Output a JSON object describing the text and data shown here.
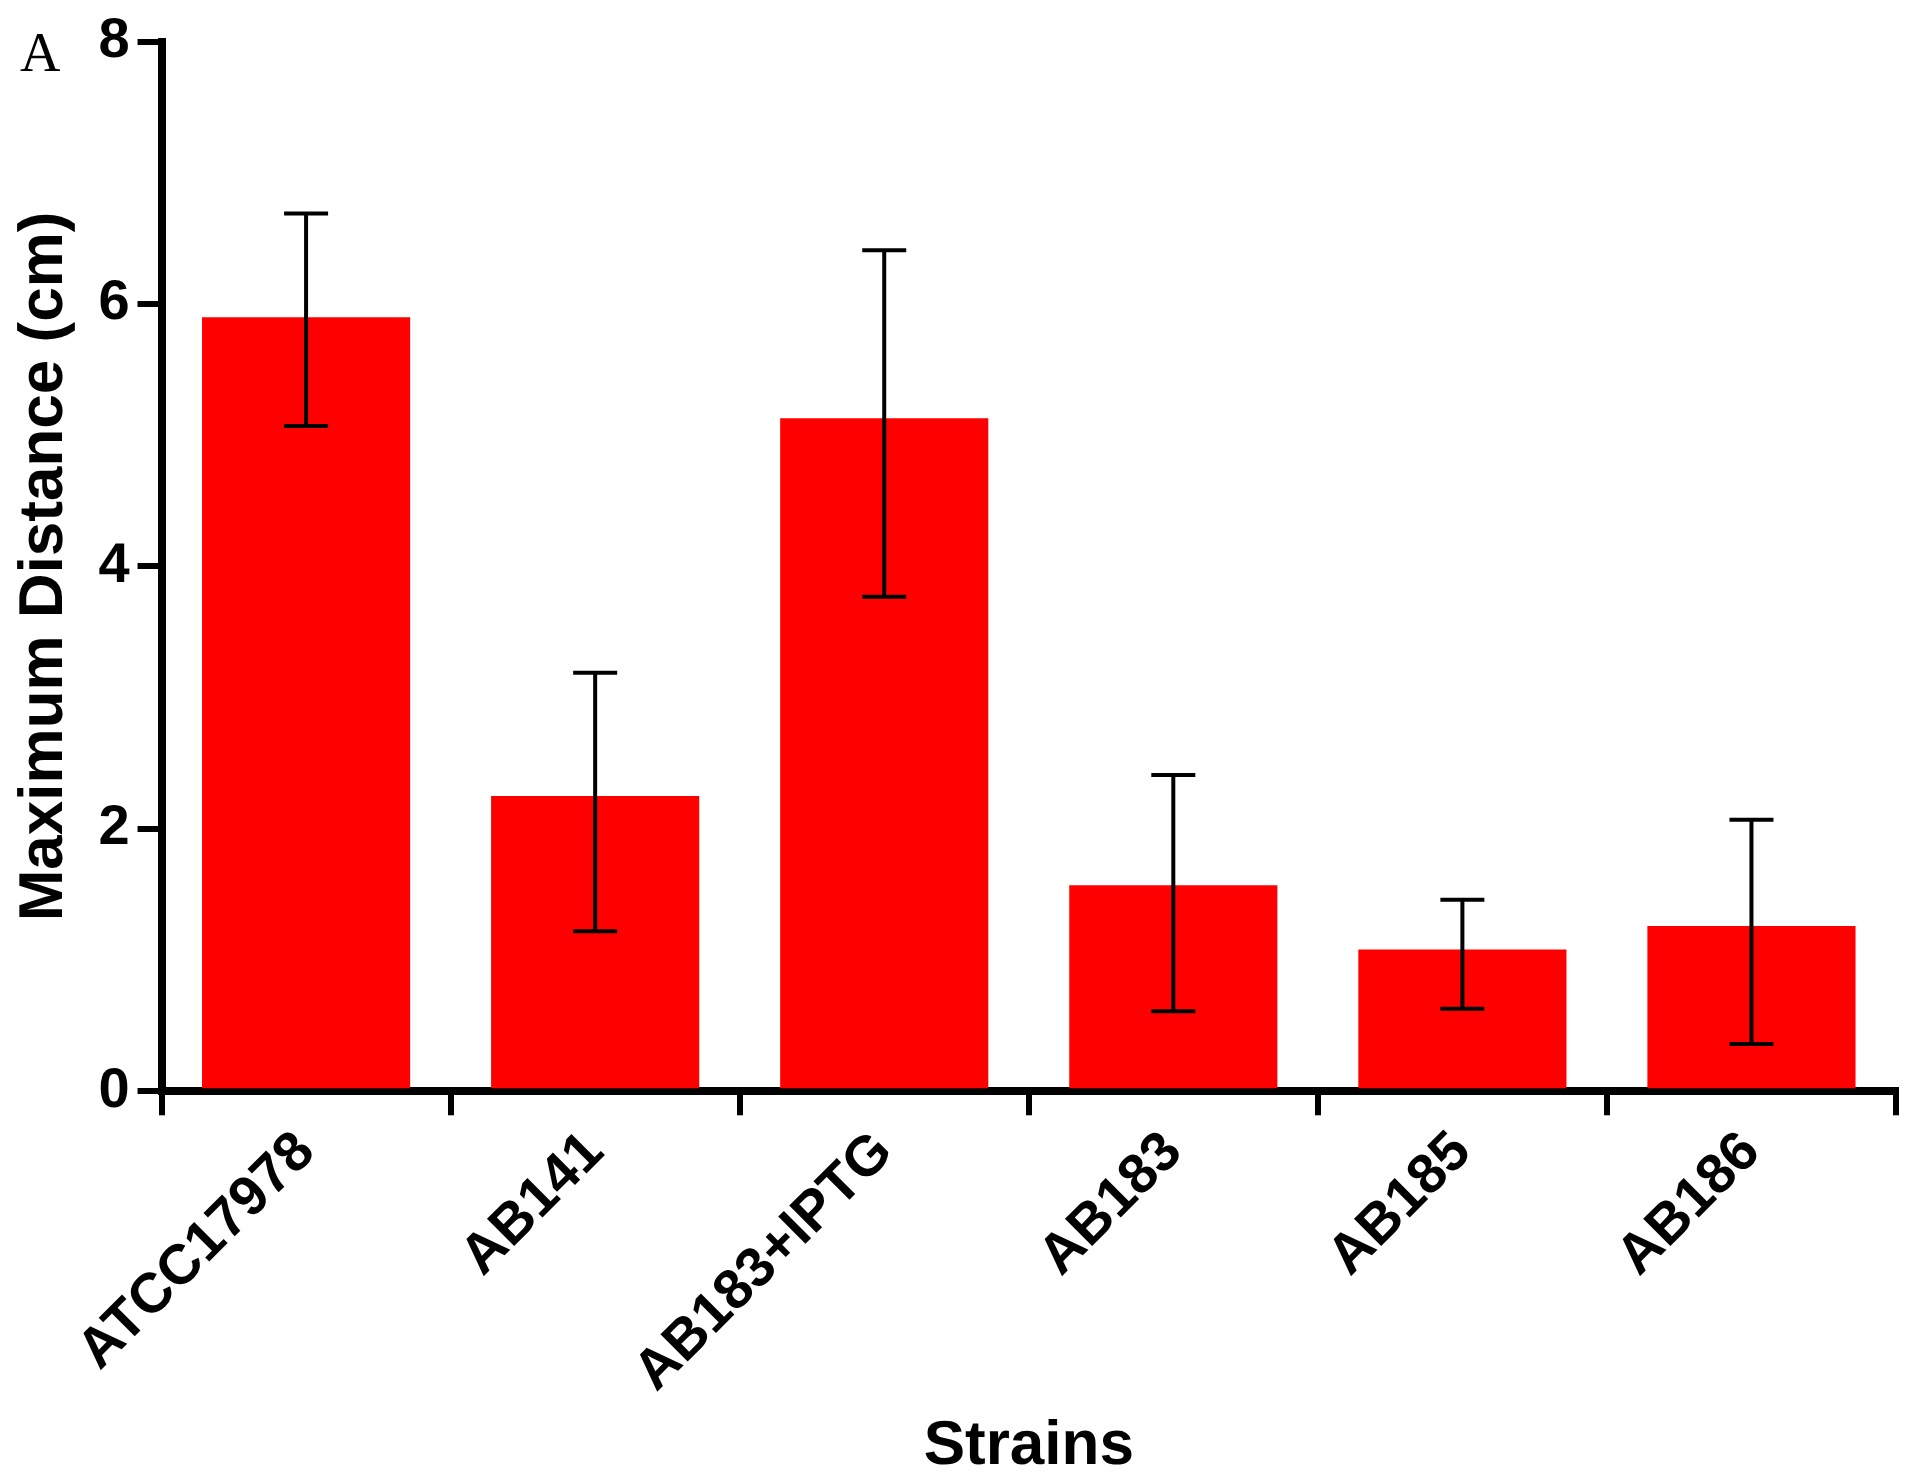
{
  "chart_data": {
    "type": "bar",
    "xlabel": "Strains",
    "ylabel": "Maximum Distance (cm)",
    "annotations": [
      "A"
    ],
    "categories": [
      "ATCC17978",
      "AB141",
      "AB183+IPTG",
      "AB183",
      "AB185",
      "AB186"
    ],
    "values": [
      5.9,
      2.25,
      5.13,
      1.57,
      1.08,
      1.26
    ],
    "errors": [
      [
        5.07,
        6.69
      ],
      [
        1.22,
        3.19
      ],
      [
        3.77,
        6.41
      ],
      [
        0.61,
        2.41
      ],
      [
        0.63,
        1.46
      ],
      [
        0.36,
        2.07
      ]
    ],
    "color": "#ff0000",
    "ylim": [
      0,
      8
    ],
    "yticks": [
      0,
      2,
      4,
      6,
      8
    ],
    "grid": false,
    "legend": false
  }
}
